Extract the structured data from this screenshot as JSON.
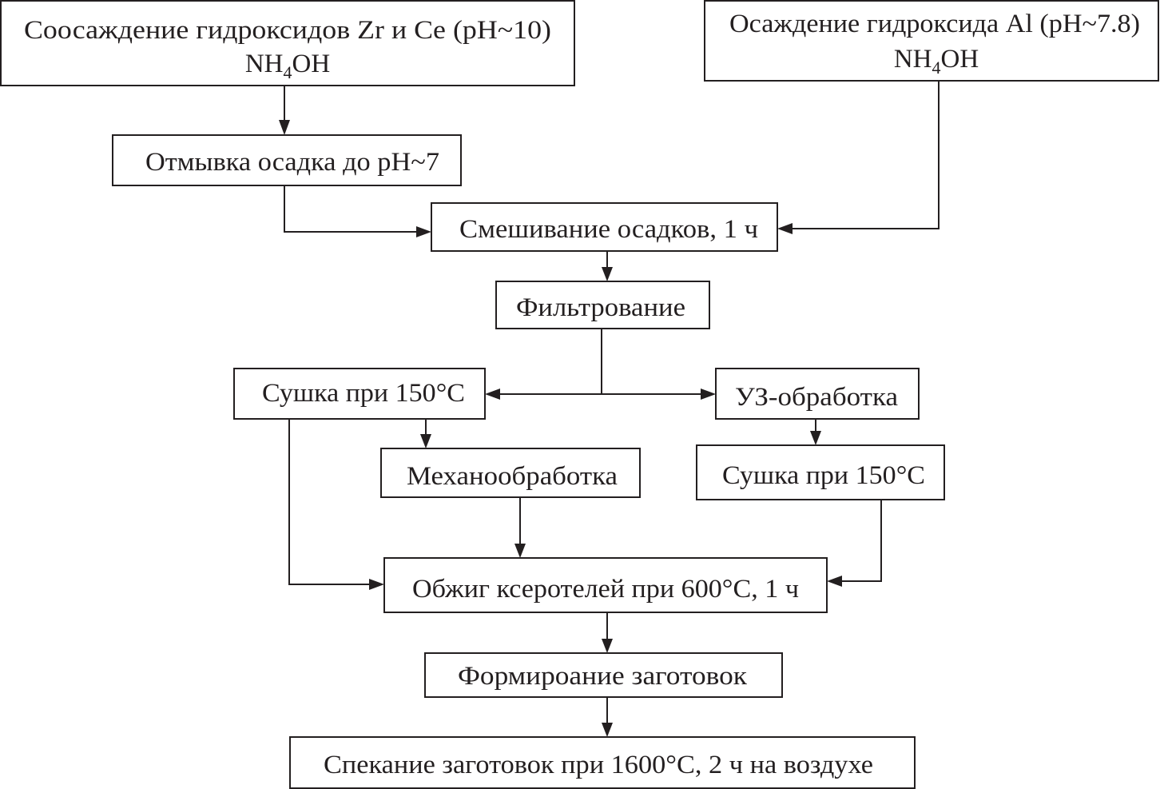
{
  "diagram": {
    "type": "flowchart",
    "colors": {
      "line": "#231f20",
      "background": "#ffffff"
    },
    "nodes": {
      "coprecip": {
        "line1": "Соосаждение гидроксидов Zr и Ce (pH~10)",
        "line2_a": "NH",
        "line2_sub": "4",
        "line2_b": "OH"
      },
      "al_precip": {
        "line1": "Осаждение гидроксида Al (pH~7.8)",
        "line2_a": "NH",
        "line2_sub": "4",
        "line2_b": "OH"
      },
      "washing": {
        "label": "Отмывка осадка до pH~7"
      },
      "mixing": {
        "label": "Смешивание осадков, 1 ч"
      },
      "filtering": {
        "label": "Фильтрование"
      },
      "drying1": {
        "label": "Сушка при 150°C"
      },
      "ultrasound": {
        "label": "УЗ-обработка"
      },
      "mechanical": {
        "label": "Механообработка"
      },
      "drying2": {
        "label": "Сушка при 150°C"
      },
      "calcination": {
        "label": "Обжиг ксеротелей при 600°C, 1 ч"
      },
      "forming": {
        "label": "Формироание заготовок"
      },
      "sintering": {
        "label": "Спекание заготовок при 1600°C, 2 ч на воздухе"
      }
    },
    "edges": [
      [
        "coprecip",
        "washing"
      ],
      [
        "washing",
        "mixing"
      ],
      [
        "al_precip",
        "mixing"
      ],
      [
        "mixing",
        "filtering"
      ],
      [
        "filtering",
        "drying1"
      ],
      [
        "filtering",
        "ultrasound"
      ],
      [
        "drying1",
        "mechanical"
      ],
      [
        "ultrasound",
        "drying2"
      ],
      [
        "drying1",
        "calcination"
      ],
      [
        "mechanical",
        "calcination"
      ],
      [
        "drying2",
        "calcination"
      ],
      [
        "calcination",
        "forming"
      ],
      [
        "forming",
        "sintering"
      ]
    ]
  }
}
